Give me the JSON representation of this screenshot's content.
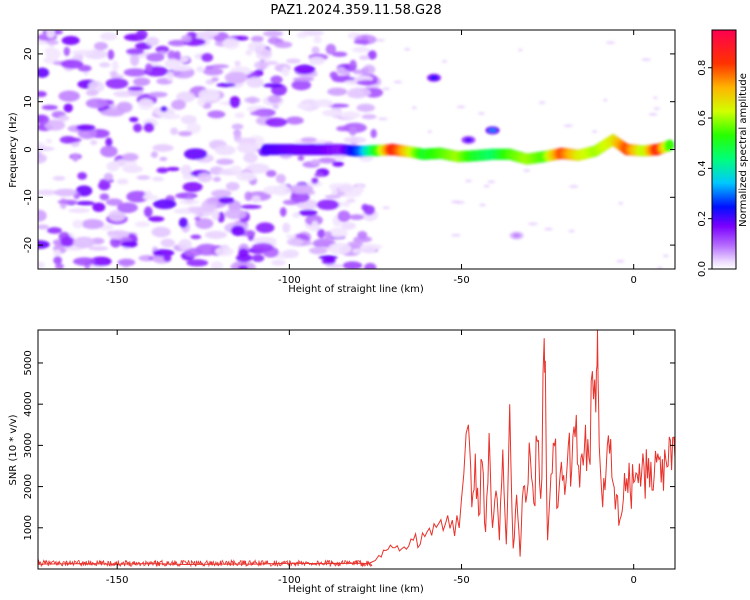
{
  "title": "PAZ1.2024.359.11.58.G28",
  "colors": {
    "series_line": "#e8322b",
    "axis": "#000000",
    "background": "#ffffff"
  },
  "chart_data": [
    {
      "type": "heatmap",
      "xlabel": "Height of straight line (km)",
      "ylabel": "Frequency (Hz)",
      "xlim": [
        -173,
        12
      ],
      "ylim": [
        -25,
        25
      ],
      "xticks": [
        "-150",
        "-100",
        "-50",
        "0"
      ],
      "xtick_values": [
        -150,
        -100,
        -50,
        0
      ],
      "yticks": [
        "-20",
        "-10",
        "0",
        "10",
        "20"
      ],
      "ytick_values": [
        -20,
        -10,
        0,
        10,
        20
      ],
      "grid": false,
      "colorbar": {
        "label": "Normalized spectral amplitude",
        "range": [
          0,
          0.95
        ],
        "ticks": [
          "0.0",
          "0.2",
          "0.4",
          "0.6",
          "0.8"
        ],
        "tick_values": [
          0.0,
          0.2,
          0.4,
          0.6,
          0.8
        ]
      },
      "noise_region_x": [
        -173,
        -75
      ],
      "ridge": [
        {
          "x": -107,
          "y": 0.0,
          "amp": 0.2
        },
        {
          "x": -98,
          "y": 0.0,
          "amp": 0.18
        },
        {
          "x": -91,
          "y": 0.0,
          "amp": 0.18
        },
        {
          "x": -85,
          "y": 0.0,
          "amp": 0.15
        },
        {
          "x": -79,
          "y": -0.4,
          "amp": 0.3
        },
        {
          "x": -74,
          "y": -0.2,
          "amp": 0.55
        },
        {
          "x": -70,
          "y": 0.0,
          "amp": 0.85
        },
        {
          "x": -65,
          "y": -0.5,
          "amp": 0.65
        },
        {
          "x": -61,
          "y": -1.0,
          "amp": 0.5
        },
        {
          "x": -56,
          "y": -0.8,
          "amp": 0.55
        },
        {
          "x": -51,
          "y": -1.5,
          "amp": 0.6
        },
        {
          "x": -46,
          "y": -1.3,
          "amp": 0.5
        },
        {
          "x": -41,
          "y": -1.0,
          "amp": 0.45
        },
        {
          "x": -36,
          "y": -1.0,
          "amp": 0.55
        },
        {
          "x": -31,
          "y": -2.0,
          "amp": 0.6
        },
        {
          "x": -26,
          "y": -1.5,
          "amp": 0.55
        },
        {
          "x": -21,
          "y": -0.8,
          "amp": 0.8
        },
        {
          "x": -16,
          "y": -1.2,
          "amp": 0.65
        },
        {
          "x": -11,
          "y": -0.3,
          "amp": 0.6
        },
        {
          "x": -6,
          "y": 2.0,
          "amp": 0.65
        },
        {
          "x": -2,
          "y": 0.0,
          "amp": 0.8
        },
        {
          "x": 3,
          "y": -0.3,
          "amp": 0.6
        },
        {
          "x": 7,
          "y": 0.0,
          "amp": 0.85
        },
        {
          "x": 11,
          "y": 1.0,
          "amp": 0.5
        }
      ],
      "features": [
        {
          "x": -58,
          "y": 15.0,
          "amp": 0.25
        },
        {
          "x": -41,
          "y": 4.0,
          "amp": 0.3
        },
        {
          "x": -48,
          "y": 2.0,
          "amp": 0.2
        },
        {
          "x": -34,
          "y": -18.0,
          "amp": 0.08
        }
      ]
    },
    {
      "type": "line",
      "xlabel": "Height of straight line (km)",
      "ylabel": "SNR (10 * v/v)",
      "xlim": [
        -173,
        12
      ],
      "ylim": [
        0,
        5800
      ],
      "xticks": [
        "-150",
        "-100",
        "-50",
        "0"
      ],
      "xtick_values": [
        -150,
        -100,
        -50,
        0
      ],
      "yticks": [
        "1000",
        "2000",
        "3000",
        "4000",
        "5000"
      ],
      "ytick_values": [
        1000,
        2000,
        3000,
        4000,
        5000
      ],
      "grid": false,
      "series": [
        {
          "x": [
            -173,
            -160,
            -150,
            -140,
            -130,
            -120,
            -110,
            -100,
            -90,
            -80,
            -77,
            -74,
            -72,
            -70,
            -68,
            -66,
            -64,
            -62,
            -60,
            -58,
            -56,
            -54,
            -52,
            -50,
            -48,
            -47,
            -46,
            -45,
            -44,
            -43,
            -42,
            -41,
            -40,
            -39,
            -38,
            -37,
            -36,
            -35,
            -34,
            -33,
            -32,
            -31,
            -30,
            -29,
            -28,
            -27,
            -26,
            -25.5,
            -25,
            -24,
            -23,
            -22,
            -21,
            -20,
            -19,
            -18,
            -17,
            -16,
            -15,
            -14,
            -13,
            -12,
            -11,
            -10.5,
            -10,
            -9,
            -8,
            -7,
            -6,
            -5,
            -4,
            -3,
            -2,
            -1,
            0,
            1,
            2,
            3,
            4,
            5,
            6,
            7,
            8,
            9,
            10,
            11,
            12
          ],
          "y": [
            120,
            130,
            120,
            130,
            110,
            120,
            120,
            140,
            130,
            140,
            130,
            330,
            450,
            520,
            440,
            480,
            700,
            600,
            900,
            1100,
            1200,
            1300,
            800,
            1700,
            3500,
            1500,
            2800,
            1300,
            2600,
            900,
            3300,
            1000,
            1900,
            700,
            2900,
            600,
            4000,
            500,
            1800,
            300,
            2000,
            1800,
            2700,
            1600,
            3100,
            1700,
            5600,
            3500,
            700,
            2300,
            3000,
            1500,
            2600,
            1800,
            3000,
            2400,
            3200,
            2500,
            2800,
            3500,
            2700,
            4800,
            3800,
            5800,
            3000,
            1500,
            2400,
            2800,
            2100,
            1800,
            1200,
            1700,
            2200,
            1900,
            2100,
            2300,
            2000,
            2500,
            2200,
            2600,
            2300,
            2800,
            2100,
            2900,
            2500,
            2400,
            2700
          ]
        }
      ]
    }
  ]
}
